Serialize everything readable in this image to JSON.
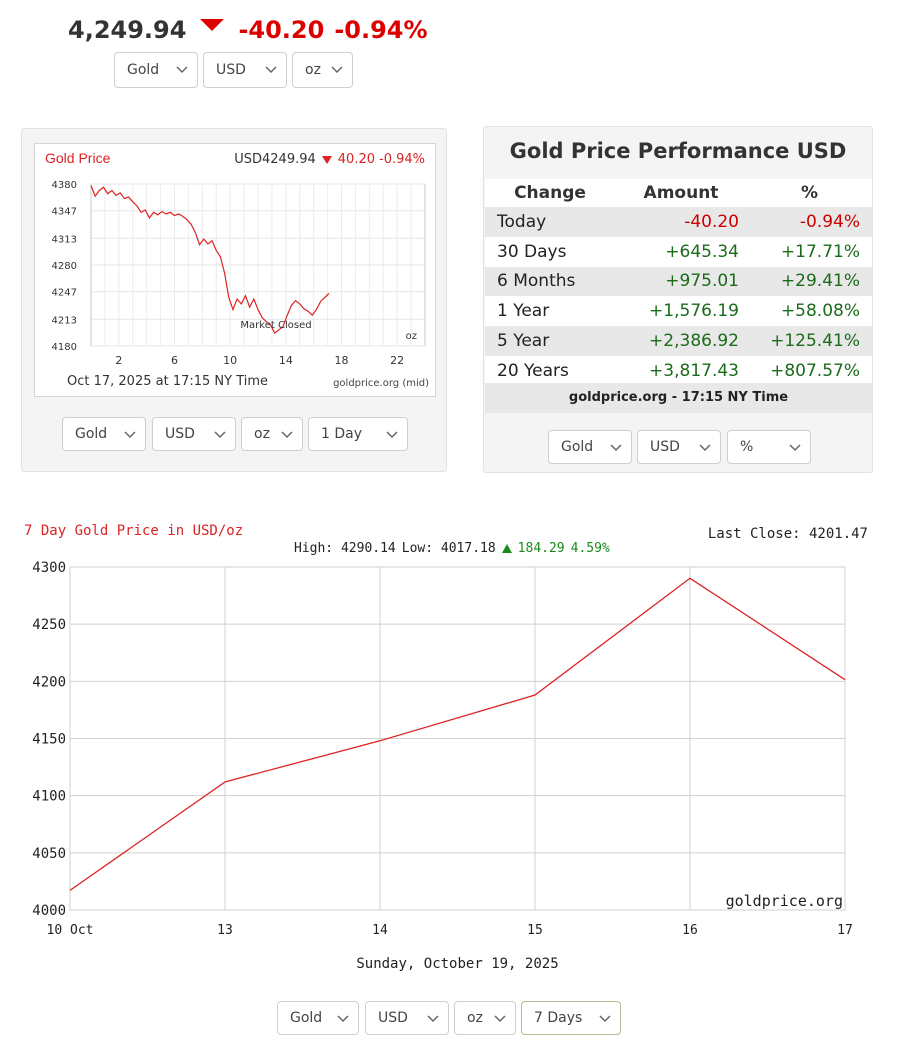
{
  "header": {
    "price": "4,249.94",
    "change": "-40.20",
    "change_pct": "-0.94%",
    "selects": [
      "Gold",
      "USD",
      "oz"
    ]
  },
  "mini_chart": {
    "title": "Gold Price",
    "quote_price": "USD4249.94",
    "quote_change": "40.20",
    "quote_pct": "-0.94%",
    "market_closed_label": "Market Closed",
    "unit_label": "oz",
    "footer_left": "Oct 17, 2025 at 17:15 NY Time",
    "footer_right": "goldprice.org (mid)",
    "selects": [
      "Gold",
      "USD",
      "oz",
      "1 Day"
    ]
  },
  "performance": {
    "title": "Gold Price Performance USD",
    "headers": [
      "Change",
      "Amount",
      "%"
    ],
    "rows": [
      {
        "period": "Today",
        "amount": "-40.20",
        "pct": "-0.94%"
      },
      {
        "period": "30 Days",
        "amount": "+645.34",
        "pct": "+17.71%"
      },
      {
        "period": "6 Months",
        "amount": "+975.01",
        "pct": "+29.41%"
      },
      {
        "period": "1 Year",
        "amount": "+1,576.19",
        "pct": "+58.08%"
      },
      {
        "period": "5 Year",
        "amount": "+2,386.92",
        "pct": "+125.41%"
      },
      {
        "period": "20 Years",
        "amount": "+3,817.43",
        "pct": "+807.57%"
      }
    ],
    "footer": "goldprice.org - 17:15 NY Time",
    "selects": [
      "Gold",
      "USD",
      "%"
    ]
  },
  "big_chart": {
    "title": "7 Day Gold Price in USD/oz",
    "last_close": "Last Close: 4201.47",
    "high_label": "High: 4290.14",
    "low_label": "Low: 4017.18",
    "change": "184.29",
    "change_pct": "4.59%",
    "watermark": "goldprice.org",
    "date_label": "Sunday, October 19, 2025",
    "selects": [
      "Gold",
      "USD",
      "oz",
      "7 Days"
    ]
  },
  "chart_data": [
    {
      "type": "line",
      "title": "Gold Price",
      "x_tick_labels": [
        "2",
        "6",
        "10",
        "14",
        "18",
        "22"
      ],
      "x_ticks": [
        2,
        6,
        10,
        14,
        18,
        22
      ],
      "xlim": [
        0,
        24
      ],
      "y_tick_labels": [
        "4380",
        "4347",
        "4313",
        "4280",
        "4247",
        "4213",
        "4180"
      ],
      "y_ticks": [
        4380,
        4347,
        4313,
        4280,
        4247,
        4213,
        4180
      ],
      "ylim": [
        4180,
        4380
      ],
      "series": [
        {
          "x": [
            0.0,
            0.3,
            0.6,
            0.9,
            1.2,
            1.5,
            1.8,
            2.1,
            2.4,
            2.7,
            3.0,
            3.3,
            3.6,
            3.9,
            4.2,
            4.5,
            4.8,
            5.1,
            5.4,
            5.7,
            6.0,
            6.3,
            6.6,
            6.9,
            7.2,
            7.5,
            7.8,
            8.1,
            8.4,
            8.7,
            9.0,
            9.3,
            9.6,
            9.9,
            10.2,
            10.5,
            10.8,
            11.1,
            11.4,
            11.7,
            12.0,
            12.3,
            12.6,
            12.9,
            13.2,
            13.5,
            13.8,
            14.1,
            14.4,
            14.7,
            15.0,
            15.3,
            15.6,
            15.9,
            16.2,
            16.5,
            16.8,
            17.1
          ],
          "y": [
            4378,
            4365,
            4372,
            4376,
            4368,
            4372,
            4366,
            4369,
            4362,
            4364,
            4358,
            4353,
            4345,
            4348,
            4338,
            4345,
            4342,
            4346,
            4343,
            4345,
            4341,
            4343,
            4340,
            4336,
            4330,
            4320,
            4305,
            4312,
            4306,
            4310,
            4298,
            4290,
            4270,
            4240,
            4225,
            4238,
            4232,
            4242,
            4228,
            4238,
            4225,
            4215,
            4210,
            4206,
            4196,
            4200,
            4204,
            4218,
            4230,
            4236,
            4232,
            4226,
            4223,
            4218,
            4225,
            4235,
            4240,
            4245
          ]
        }
      ]
    },
    {
      "type": "line",
      "title": "7 Day Gold Price in USD/oz",
      "categories": [
        "10 Oct",
        "13",
        "14",
        "15",
        "16",
        "17"
      ],
      "y_tick_labels": [
        "4300",
        "4250",
        "4200",
        "4150",
        "4100",
        "4050",
        "4000"
      ],
      "y_ticks": [
        4300,
        4250,
        4200,
        4150,
        4100,
        4050,
        4000
      ],
      "ylim": [
        4000,
        4300
      ],
      "grid": true,
      "series": [
        {
          "values": [
            4017.18,
            4112,
            4148,
            4188,
            4290.14,
            4201.47
          ]
        }
      ]
    }
  ],
  "colors": {
    "price_down": "#dd0000",
    "positive": "#1a6b1a",
    "chart_line": "#dd2222",
    "grid": "#d0d0d0"
  }
}
